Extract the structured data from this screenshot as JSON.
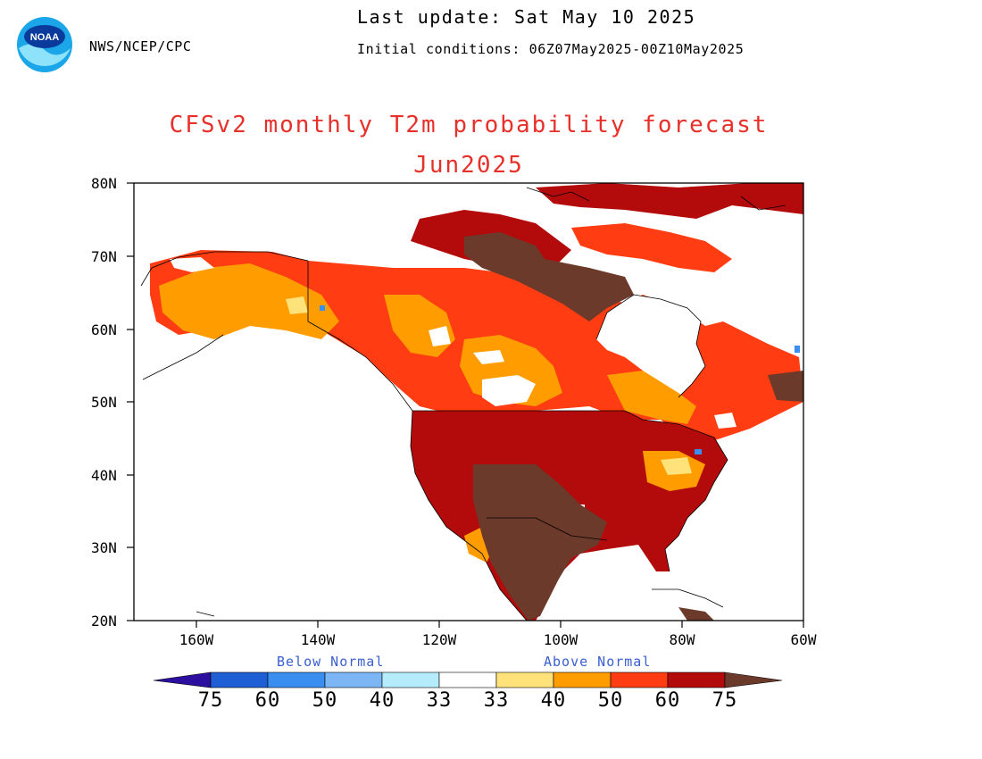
{
  "header": {
    "agency": "NWS/NCEP/CPC",
    "last_update": "Last update: Sat May 10 2025",
    "initial_conditions": "Initial conditions: 06Z07May2025-00Z10May2025",
    "logo_text": "NOAA"
  },
  "title": {
    "line1": "CFSv2 monthly T2m probability forecast",
    "line2": "Jun2025"
  },
  "map": {
    "lat_labels": [
      "80N",
      "70N",
      "60N",
      "50N",
      "40N",
      "30N",
      "20N"
    ],
    "lon_labels": [
      "160W",
      "140W",
      "120W",
      "100W",
      "80W",
      "60W"
    ]
  },
  "legend": {
    "below_label": "Below Normal",
    "above_label": "Above Normal",
    "ticks": [
      "75",
      "60",
      "50",
      "40",
      "33",
      "33",
      "40",
      "50",
      "60",
      "75"
    ],
    "colors": {
      "below_75": "#2c0f9e",
      "below_60": "#1e5fd6",
      "below_50": "#3a8ef0",
      "below_40": "#7db6f5",
      "below_33": "#b4ecfb",
      "normal": "#ffffff",
      "above_33": "#ffe27a",
      "above_40": "#ff9c00",
      "above_50": "#ff3c12",
      "above_60": "#b30b0b",
      "above_75": "#6b3a2a"
    }
  }
}
